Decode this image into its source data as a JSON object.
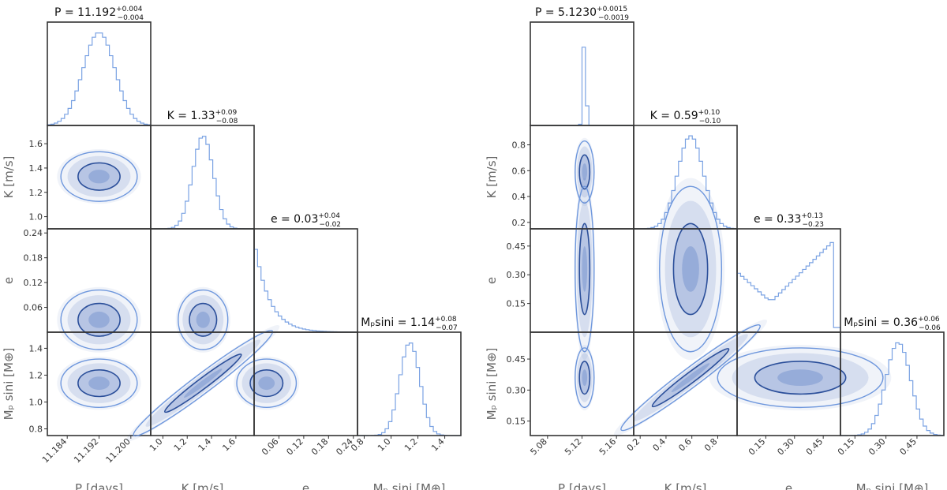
{
  "chart_data": [
    {
      "type": "corner",
      "name": "planet_b",
      "params": [
        {
          "key": "P",
          "label": "P [days]",
          "range": [
            11.179,
            11.205
          ],
          "ticks": [
            11.184,
            11.192,
            11.2
          ],
          "tick_labels": [
            "11.184",
            "11.192",
            "11.200"
          ],
          "median": 11.192,
          "sigma": 0.004
        },
        {
          "key": "K",
          "label": "K [m/s]",
          "range": [
            0.9,
            1.75
          ],
          "ticks": [
            1.0,
            1.2,
            1.4,
            1.6
          ],
          "tick_labels": [
            "1.0",
            "1.2",
            "1.4",
            "1.6"
          ],
          "median": 1.33,
          "sigma": 0.085
        },
        {
          "key": "e",
          "label": "e",
          "range": [
            0.0,
            0.25
          ],
          "ticks": [
            0.06,
            0.12,
            0.18,
            0.24
          ],
          "tick_labels": [
            "0.06",
            "0.12",
            "0.18",
            "0.24"
          ],
          "median": 0.03,
          "sigma": 0.03
        },
        {
          "key": "M",
          "label": "Mₚ sini [M⊕]",
          "range": [
            0.75,
            1.52
          ],
          "ticks": [
            0.8,
            1.0,
            1.2,
            1.4
          ],
          "tick_labels": [
            "0.8",
            "1.0",
            "1.2",
            "1.4"
          ],
          "median": 1.14,
          "sigma": 0.075
        }
      ],
      "titles": [
        {
          "prefix": "P = ",
          "value": "11.192",
          "plus": "+0.004",
          "minus": "−0.004"
        },
        {
          "prefix": "K = ",
          "value": "1.33",
          "plus": "+0.09",
          "minus": "−0.08"
        },
        {
          "prefix": "e = ",
          "value": "0.03",
          "plus": "+0.04",
          "minus": "−0.02"
        },
        {
          "prefix": "Mₚsini = ",
          "value": "1.14",
          "plus": "+0.08",
          "minus": "−0.07"
        }
      ]
    },
    {
      "type": "corner",
      "name": "planet_c",
      "params": [
        {
          "key": "P",
          "label": "P [days]",
          "range": [
            5.06,
            5.18
          ],
          "ticks": [
            5.08,
            5.12,
            5.16
          ],
          "tick_labels": [
            "5.08",
            "5.12",
            "5.16"
          ],
          "median": 5.123,
          "sigma": 0.0017
        },
        {
          "key": "K",
          "label": "K [m/s]",
          "range": [
            0.15,
            0.95
          ],
          "ticks": [
            0.2,
            0.4,
            0.6,
            0.8
          ],
          "tick_labels": [
            "0.2",
            "0.4",
            "0.6",
            "0.8"
          ],
          "median": 0.59,
          "sigma": 0.1
        },
        {
          "key": "e",
          "label": "e",
          "range": [
            0.0,
            0.54
          ],
          "ticks": [
            0.15,
            0.3,
            0.45
          ],
          "tick_labels": [
            "0.15",
            "0.30",
            "0.45"
          ],
          "median": 0.33,
          "sigma": 0.18
        },
        {
          "key": "M",
          "label": "Mₚ sini [M⊕]",
          "range": [
            0.08,
            0.58
          ],
          "ticks": [
            0.15,
            0.3,
            0.45
          ],
          "tick_labels": [
            "0.15",
            "0.30",
            "0.45"
          ],
          "median": 0.36,
          "sigma": 0.06
        }
      ],
      "titles": [
        {
          "prefix": "P = ",
          "value": "5.1230",
          "plus": "+0.0015",
          "minus": "−0.0019"
        },
        {
          "prefix": "K = ",
          "value": "0.59",
          "plus": "+0.10",
          "minus": "−0.10"
        },
        {
          "prefix": "e = ",
          "value": "0.33",
          "plus": "+0.13",
          "minus": "−0.23"
        },
        {
          "prefix": "Mₚsini = ",
          "value": "0.36",
          "plus": "+0.06",
          "minus": "−0.06"
        }
      ]
    }
  ],
  "colors": {
    "inner_contour": "#2b4f9a",
    "outer_contour": "#6e97dd",
    "hist": "#7aa2e3",
    "density": "#3a66b8"
  }
}
